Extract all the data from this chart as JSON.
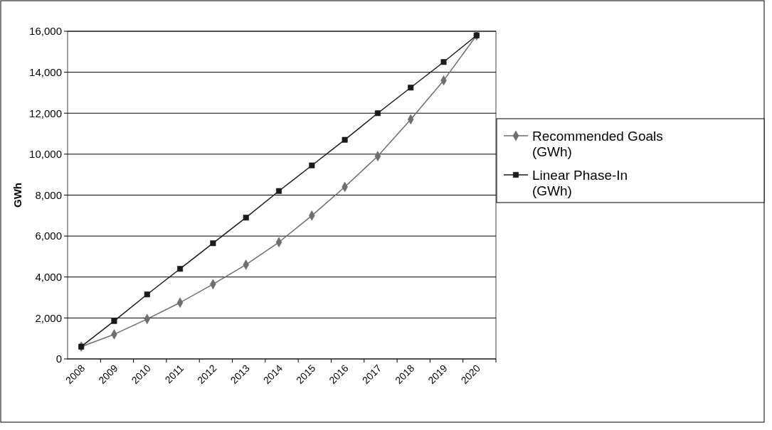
{
  "chart_data": {
    "type": "line",
    "ylabel": "GWh",
    "categories": [
      "2008",
      "2009",
      "2010",
      "2011",
      "2012",
      "2013",
      "2014",
      "2015",
      "2016",
      "2017",
      "2018",
      "2019",
      "2020"
    ],
    "series": [
      {
        "name": "Recommended Goals (GWh)",
        "color": "#6e6e6e",
        "marker": "diamond",
        "values": [
          600,
          1200,
          1950,
          2750,
          3650,
          4600,
          5700,
          7000,
          8400,
          9900,
          11700,
          13600,
          15800
        ]
      },
      {
        "name": "Linear Phase-In (GWh)",
        "color": "#1a1a1a",
        "marker": "square",
        "values": [
          600,
          1850,
          3150,
          4400,
          5650,
          6900,
          8200,
          9450,
          10700,
          12000,
          13250,
          14500,
          15800
        ]
      }
    ],
    "ylim": [
      0,
      16000
    ],
    "yticks": [
      {
        "value": 0,
        "label": "0"
      },
      {
        "value": 2000,
        "label": "2,000"
      },
      {
        "value": 4000,
        "label": "4,000"
      },
      {
        "value": 6000,
        "label": "6,000"
      },
      {
        "value": 8000,
        "label": "8,000"
      },
      {
        "value": 10000,
        "label": "10,000"
      },
      {
        "value": 12000,
        "label": "12,000"
      },
      {
        "value": 14000,
        "label": "14,000"
      },
      {
        "value": 16000,
        "label": "16,000"
      }
    ],
    "grid": "y",
    "legend": "right",
    "line_style": "solid"
  }
}
